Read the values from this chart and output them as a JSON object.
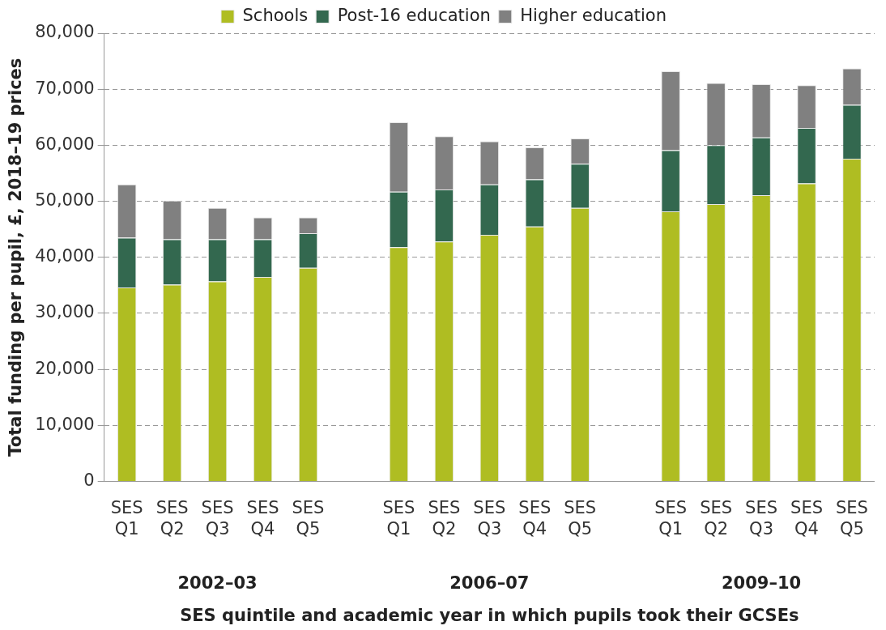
{
  "chart_data": {
    "type": "bar",
    "stacked": true,
    "ylabel": "Total funding per pupil, £, 2018–19 prices",
    "xlabel": "SES quintile and academic year in which pupils took their GCSEs",
    "categories": [
      "SES Q1",
      "SES Q2",
      "SES Q3",
      "SES Q4",
      "SES Q5",
      null,
      "SES Q1",
      "SES Q2",
      "SES Q3",
      "SES Q4",
      "SES Q5",
      null,
      "SES Q1",
      "SES Q2",
      "SES Q3",
      "SES Q4",
      "SES Q5"
    ],
    "series": [
      {
        "name": "Schools",
        "color": "#afbd22",
        "values": [
          34600,
          35100,
          35700,
          36500,
          38100,
          null,
          41800,
          42800,
          44000,
          45500,
          48800,
          null,
          48200,
          49500,
          51100,
          53200,
          57600
        ]
      },
      {
        "name": "Post-16 education",
        "color": "#33684f",
        "values": [
          8900,
          8100,
          7500,
          6700,
          6200,
          null,
          9900,
          9300,
          9000,
          8400,
          7900,
          null,
          10900,
          10500,
          10300,
          9900,
          9600
        ]
      },
      {
        "name": "Higher education",
        "color": "#808080",
        "values": [
          9500,
          6900,
          5600,
          3900,
          2800,
          null,
          12400,
          9500,
          7700,
          5700,
          4500,
          null,
          14100,
          11100,
          9500,
          7600,
          6500
        ]
      }
    ],
    "ylim": [
      0,
      80000
    ],
    "yticks": [
      0,
      {
        "value": 10000,
        "label": "10,000"
      },
      {
        "value": 20000,
        "label": "20,000"
      },
      {
        "value": 30000,
        "label": "30,000"
      },
      {
        "value": 40000,
        "label": "40,000"
      },
      {
        "value": 50000,
        "label": "50,000"
      },
      {
        "value": 60000,
        "label": "60,000"
      },
      {
        "value": 70000,
        "label": "70,000"
      },
      {
        "value": 80000,
        "label": "80,000"
      }
    ],
    "grid": "y",
    "legend": "top",
    "annotations": [
      "2002–03",
      "2006–07",
      "2009–10"
    ]
  }
}
